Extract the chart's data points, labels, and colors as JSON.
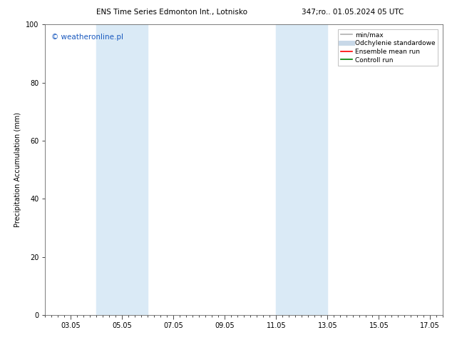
{
  "title_left": "ENS Time Series Edmonton Int., Lotnisko",
  "title_right": "347;ro.. 01.05.2024 05 UTC",
  "ylabel": "Precipitation Accumulation (mm)",
  "watermark": "© weatheronline.pl",
  "ylim": [
    0,
    100
  ],
  "yticks": [
    0,
    20,
    40,
    60,
    80,
    100
  ],
  "xtick_labels": [
    "03.05",
    "05.05",
    "07.05",
    "09.05",
    "11.05",
    "13.05",
    "15.05",
    "17.05"
  ],
  "xtick_positions": [
    3,
    5,
    7,
    9,
    11,
    13,
    15,
    17
  ],
  "shaded_bands": [
    {
      "xmin": 4.0,
      "xmax": 6.0
    },
    {
      "xmin": 11.0,
      "xmax": 13.0
    }
  ],
  "band_color": "#daeaf6",
  "xmin": 2.0,
  "xmax": 17.5,
  "legend_items": [
    {
      "label": "min/max",
      "color": "#b0b0b0",
      "lw": 1.2
    },
    {
      "label": "Odchylenie standardowe",
      "color": "#c8d8e8",
      "lw": 5
    },
    {
      "label": "Ensemble mean run",
      "color": "#ff0000",
      "lw": 1.2
    },
    {
      "label": "Controll run",
      "color": "#008000",
      "lw": 1.2
    }
  ],
  "bg_color": "#ffffff",
  "plot_bg_color": "#ffffff",
  "title_fontsize": 7.5,
  "label_fontsize": 7,
  "tick_fontsize": 7,
  "legend_fontsize": 6.5,
  "watermark_color": "#1a5abf",
  "watermark_fontsize": 7.5
}
